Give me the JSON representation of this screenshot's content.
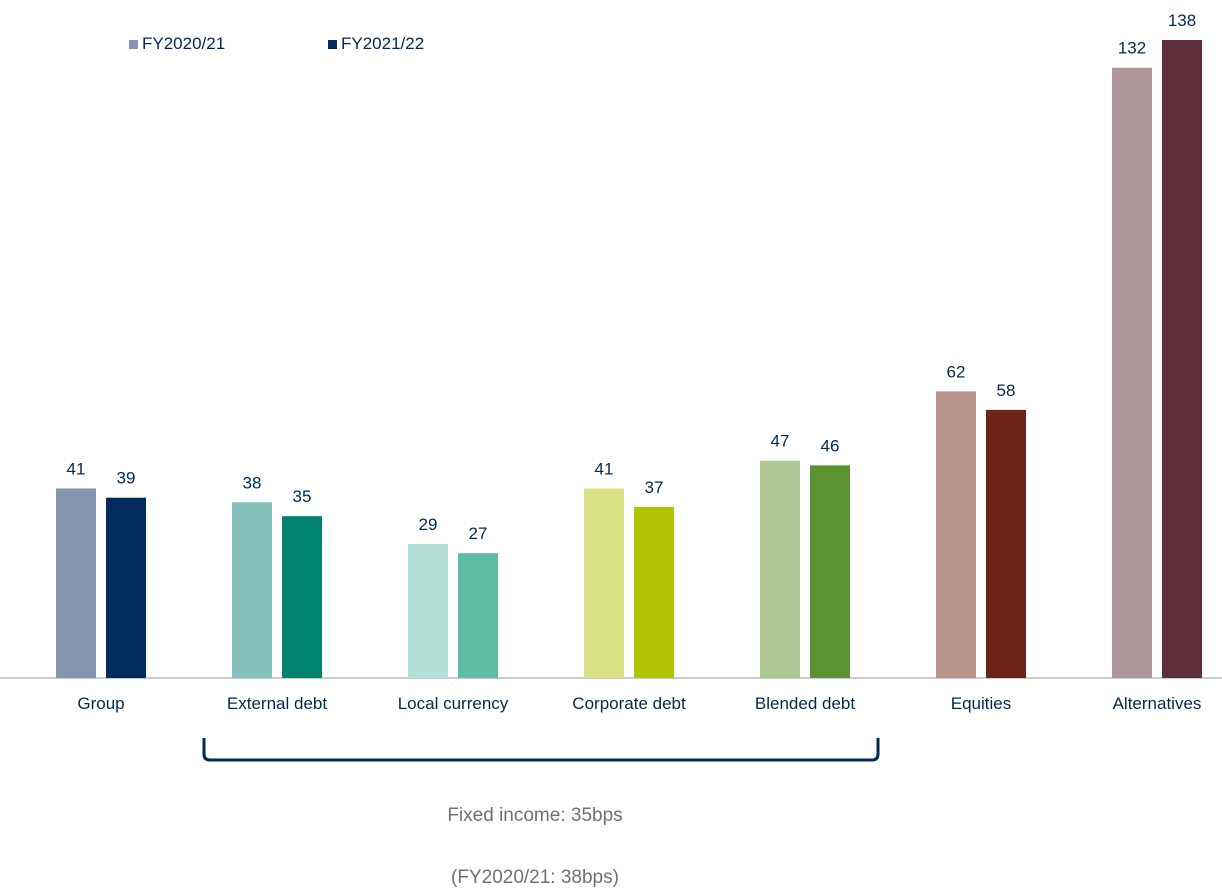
{
  "chart_data": {
    "type": "bar",
    "categories": [
      "Group",
      "External debt",
      "Local currency",
      "Corporate debt",
      "Blended debt",
      "Equities",
      "Alternatives"
    ],
    "series": [
      {
        "name": "FY2020/21",
        "values": [
          41,
          38,
          29,
          41,
          47,
          62,
          132
        ]
      },
      {
        "name": "FY2021/22",
        "values": [
          39,
          35,
          27,
          37,
          46,
          58,
          138
        ]
      }
    ],
    "bar_colors": [
      [
        "#8496AD",
        "#002B5C"
      ],
      [
        "#82C0B9",
        "#008271"
      ],
      [
        "#B2DFD6",
        "#5FBDA4"
      ],
      [
        "#D9E186",
        "#B1C404"
      ],
      [
        "#ADC895",
        "#5C9331"
      ],
      [
        "#B8938A",
        "#6E2318"
      ],
      [
        "#AD959A",
        "#5E2F3B"
      ]
    ],
    "legend_colors": [
      "#8496AD",
      "#002B5C"
    ],
    "legend_position": "top-left",
    "ylim": [
      0,
      140
    ],
    "data_labels": true,
    "grid": false,
    "bracket": {
      "from": "External debt",
      "to": "Blended debt"
    }
  },
  "notes": {
    "fixed_income": "Fixed income: 35bps",
    "prior_year": "(FY2020/21: 38bps)"
  }
}
